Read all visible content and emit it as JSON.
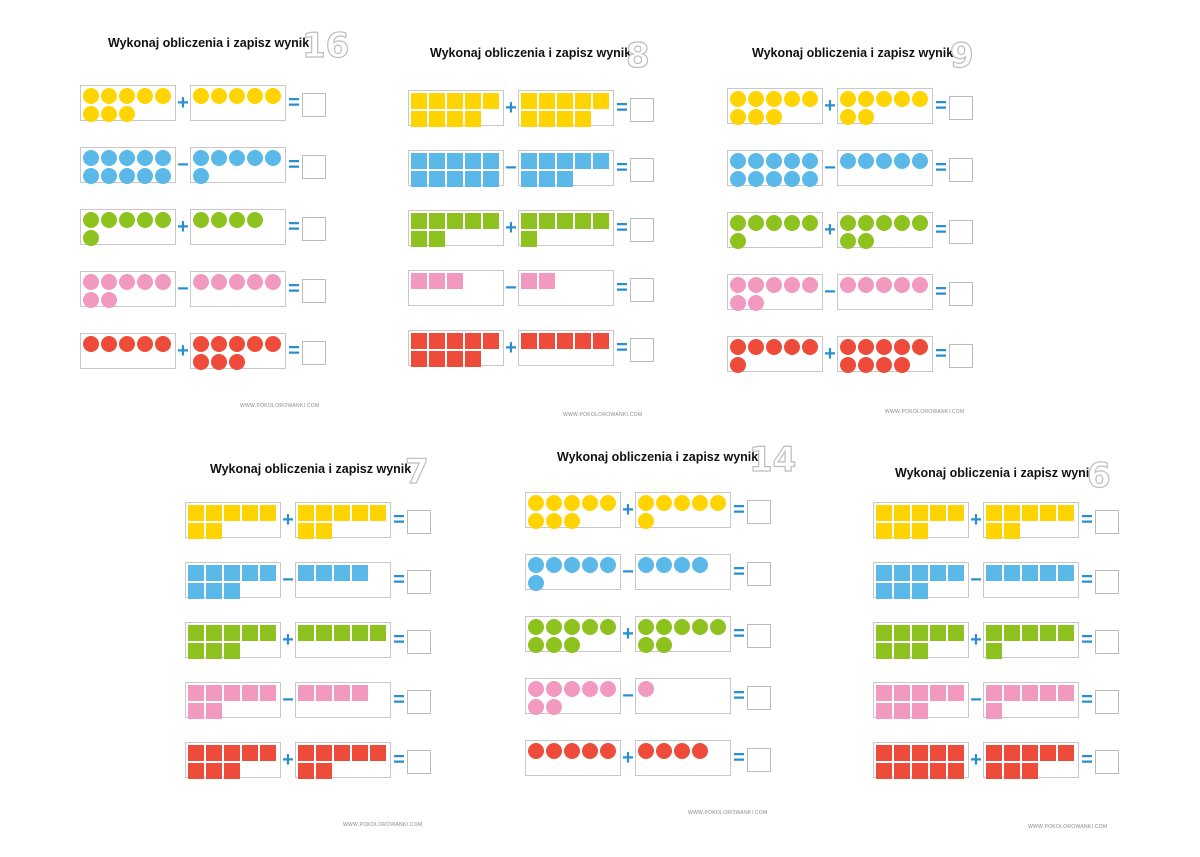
{
  "title": "Wykonaj obliczenia i zapisz wynik",
  "footer": "WWW.POKOLOROWANKI.COM",
  "colors": {
    "yellow": "#ffd400",
    "blue": "#5ab9e8",
    "green": "#8dc21f",
    "pink": "#f299c0",
    "red": "#ee4b3a",
    "operator": "#2a8fce"
  },
  "worksheets": [
    {
      "number": "16",
      "shape": "circle",
      "rows": [
        {
          "color": "yellow",
          "a": 8,
          "op": "+",
          "b": 5,
          "eq": "="
        },
        {
          "color": "blue",
          "a": 10,
          "op": "−",
          "b": 6,
          "eq": "="
        },
        {
          "color": "green",
          "a": 6,
          "op": "+",
          "b": 4,
          "eq": "="
        },
        {
          "color": "pink",
          "a": 7,
          "op": "−",
          "b": 5,
          "eq": "="
        },
        {
          "color": "red",
          "a": 5,
          "op": "+",
          "b": 8,
          "eq": "="
        }
      ]
    },
    {
      "number": "8",
      "shape": "square",
      "rows": [
        {
          "color": "yellow",
          "a": 9,
          "op": "+",
          "b": 9,
          "eq": "="
        },
        {
          "color": "blue",
          "a": 10,
          "op": "−",
          "b": 8,
          "eq": "="
        },
        {
          "color": "green",
          "a": 7,
          "op": "+",
          "b": 6,
          "eq": "="
        },
        {
          "color": "pink",
          "a": 3,
          "op": "−",
          "b": 2,
          "eq": "="
        },
        {
          "color": "red",
          "a": 9,
          "op": "+",
          "b": 5,
          "eq": "="
        }
      ]
    },
    {
      "number": "9",
      "shape": "circle",
      "rows": [
        {
          "color": "yellow",
          "a": 8,
          "op": "+",
          "b": 7,
          "eq": "="
        },
        {
          "color": "blue",
          "a": 10,
          "op": "−",
          "b": 5,
          "eq": "="
        },
        {
          "color": "green",
          "a": 6,
          "op": "+",
          "b": 7,
          "eq": "="
        },
        {
          "color": "pink",
          "a": 7,
          "op": "−",
          "b": 5,
          "eq": "="
        },
        {
          "color": "red",
          "a": 6,
          "op": "+",
          "b": 9,
          "eq": "="
        }
      ]
    },
    {
      "number": "7",
      "shape": "square",
      "rows": [
        {
          "color": "yellow",
          "a": 7,
          "op": "+",
          "b": 7,
          "eq": "="
        },
        {
          "color": "blue",
          "a": 8,
          "op": "−",
          "b": 4,
          "eq": "="
        },
        {
          "color": "green",
          "a": 8,
          "op": "+",
          "b": 5,
          "eq": "="
        },
        {
          "color": "pink",
          "a": 7,
          "op": "−",
          "b": 4,
          "eq": "="
        },
        {
          "color": "red",
          "a": 8,
          "op": "+",
          "b": 7,
          "eq": "="
        }
      ]
    },
    {
      "number": "14",
      "shape": "circle",
      "rows": [
        {
          "color": "yellow",
          "a": 8,
          "op": "+",
          "b": 6,
          "eq": "="
        },
        {
          "color": "blue",
          "a": 6,
          "op": "−",
          "b": 4,
          "eq": "="
        },
        {
          "color": "green",
          "a": 8,
          "op": "+",
          "b": 7,
          "eq": "="
        },
        {
          "color": "pink",
          "a": 7,
          "op": "−",
          "b": 1,
          "eq": "="
        },
        {
          "color": "red",
          "a": 5,
          "op": "+",
          "b": 4,
          "eq": "="
        }
      ]
    },
    {
      "number": "6",
      "shape": "square",
      "rows": [
        {
          "color": "yellow",
          "a": 8,
          "op": "+",
          "b": 7,
          "eq": "="
        },
        {
          "color": "blue",
          "a": 8,
          "op": "−",
          "b": 5,
          "eq": "="
        },
        {
          "color": "green",
          "a": 8,
          "op": "+",
          "b": 6,
          "eq": "="
        },
        {
          "color": "pink",
          "a": 8,
          "op": "−",
          "b": 6,
          "eq": "="
        },
        {
          "color": "red",
          "a": 10,
          "op": "+",
          "b": 8,
          "eq": "="
        }
      ]
    }
  ]
}
